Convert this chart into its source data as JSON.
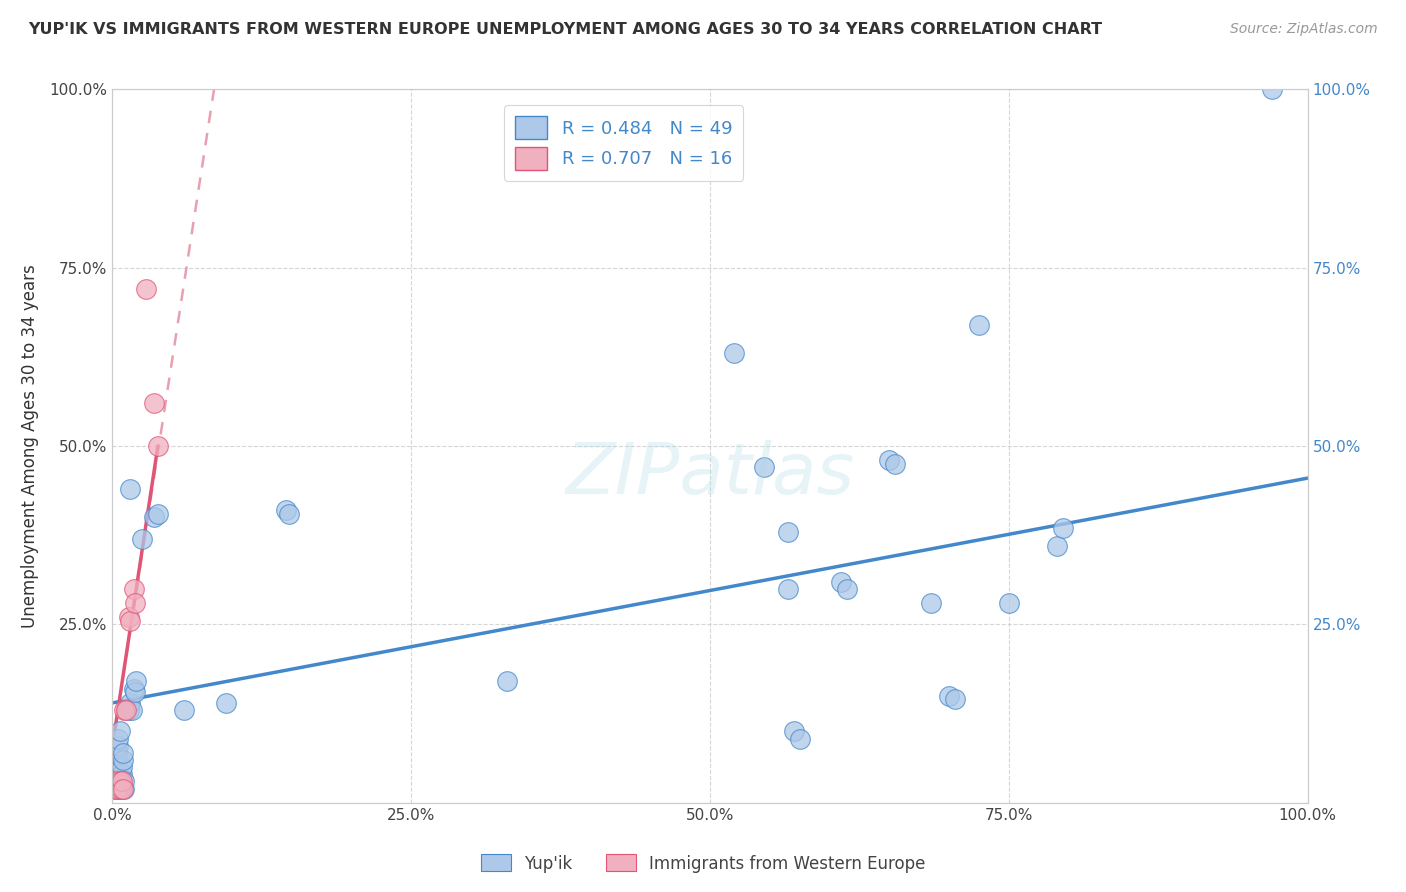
{
  "title": "YUP'IK VS IMMIGRANTS FROM WESTERN EUROPE UNEMPLOYMENT AMONG AGES 30 TO 34 YEARS CORRELATION CHART",
  "source": "Source: ZipAtlas.com",
  "ylabel": "Unemployment Among Ages 30 to 34 years",
  "legend_label1": "Yup'ik",
  "legend_label2": "Immigrants from Western Europe",
  "r1": 0.484,
  "n1": 49,
  "r2": 0.707,
  "n2": 16,
  "color1": "#adc8e8",
  "color2": "#f0b0c0",
  "trendline1_color": "#4488cc",
  "trendline2_color": "#e05575",
  "trendline2_dashed_color": "#e8a0b0",
  "background": "#ffffff",
  "grid_color": "#cccccc",
  "xlim": [
    0.0,
    1.0
  ],
  "ylim": [
    0.0,
    1.0
  ],
  "yupik_points": [
    [
      0.015,
      0.44
    ],
    [
      0.025,
      0.37
    ],
    [
      0.035,
      0.4
    ],
    [
      0.038,
      0.405
    ],
    [
      0.002,
      0.02
    ],
    [
      0.003,
      0.04
    ],
    [
      0.003,
      0.05
    ],
    [
      0.004,
      0.06
    ],
    [
      0.004,
      0.07
    ],
    [
      0.005,
      0.08
    ],
    [
      0.005,
      0.09
    ],
    [
      0.006,
      0.1
    ],
    [
      0.006,
      0.02
    ],
    [
      0.007,
      0.03
    ],
    [
      0.008,
      0.04
    ],
    [
      0.008,
      0.05
    ],
    [
      0.009,
      0.06
    ],
    [
      0.009,
      0.07
    ],
    [
      0.01,
      0.02
    ],
    [
      0.01,
      0.03
    ],
    [
      0.014,
      0.13
    ],
    [
      0.015,
      0.14
    ],
    [
      0.016,
      0.13
    ],
    [
      0.018,
      0.16
    ],
    [
      0.019,
      0.155
    ],
    [
      0.02,
      0.17
    ],
    [
      0.06,
      0.13
    ],
    [
      0.095,
      0.14
    ],
    [
      0.145,
      0.41
    ],
    [
      0.148,
      0.405
    ],
    [
      0.33,
      0.17
    ],
    [
      0.52,
      0.63
    ],
    [
      0.545,
      0.47
    ],
    [
      0.565,
      0.38
    ],
    [
      0.565,
      0.3
    ],
    [
      0.57,
      0.1
    ],
    [
      0.575,
      0.09
    ],
    [
      0.61,
      0.31
    ],
    [
      0.615,
      0.3
    ],
    [
      0.65,
      0.48
    ],
    [
      0.655,
      0.475
    ],
    [
      0.685,
      0.28
    ],
    [
      0.7,
      0.15
    ],
    [
      0.705,
      0.145
    ],
    [
      0.725,
      0.67
    ],
    [
      0.75,
      0.28
    ],
    [
      0.79,
      0.36
    ],
    [
      0.795,
      0.385
    ],
    [
      0.97,
      1.0
    ]
  ],
  "immigrant_points": [
    [
      0.003,
      0.02
    ],
    [
      0.004,
      0.03
    ],
    [
      0.005,
      0.02
    ],
    [
      0.006,
      0.03
    ],
    [
      0.007,
      0.02
    ],
    [
      0.008,
      0.03
    ],
    [
      0.009,
      0.02
    ],
    [
      0.01,
      0.13
    ],
    [
      0.011,
      0.13
    ],
    [
      0.014,
      0.26
    ],
    [
      0.015,
      0.255
    ],
    [
      0.018,
      0.3
    ],
    [
      0.019,
      0.28
    ],
    [
      0.028,
      0.72
    ],
    [
      0.035,
      0.56
    ],
    [
      0.038,
      0.5
    ]
  ],
  "trendline1_x0": 0.0,
  "trendline1_y0": 0.14,
  "trendline1_x1": 1.0,
  "trendline1_y1": 0.455,
  "trendline2_solid_x0": 0.0,
  "trendline2_solid_y0": 0.08,
  "trendline2_solid_x1": 0.038,
  "trendline2_solid_y1": 0.5,
  "trendline2_dashed_x0": 0.0,
  "trendline2_dashed_y0": 0.08,
  "trendline2_dashed_x1": 0.085,
  "trendline2_dashed_y1": 1.0
}
